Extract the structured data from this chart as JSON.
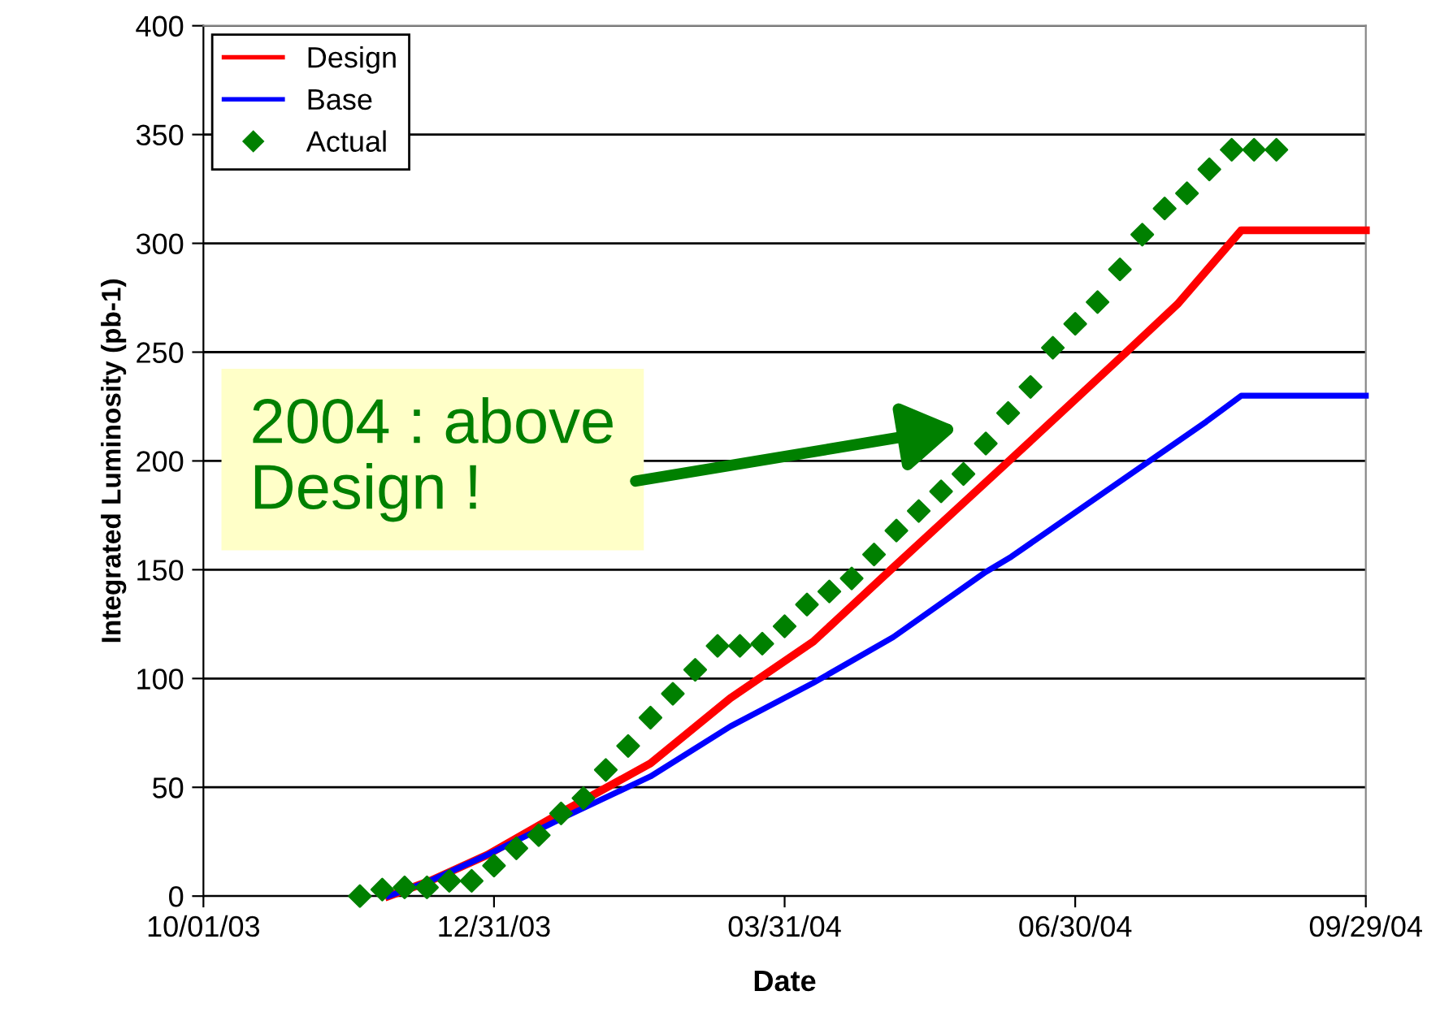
{
  "chart_data": {
    "type": "line",
    "xlabel": "Date",
    "ylabel": "Integrated Luminosity (pb-1)",
    "xlim": [
      "2003-10-01",
      "2004-09-29"
    ],
    "xticks": [
      {
        "value": "2003-10-01",
        "label": "10/01/03"
      },
      {
        "value": "2003-12-31",
        "label": "12/31/03"
      },
      {
        "value": "2004-03-31",
        "label": "03/31/04"
      },
      {
        "value": "2004-06-30",
        "label": "06/30/04"
      },
      {
        "value": "2004-09-29",
        "label": "09/29/04"
      }
    ],
    "ylim": [
      0,
      400
    ],
    "yticks": [
      0,
      50,
      100,
      150,
      200,
      250,
      300,
      350,
      400
    ],
    "grid": "y",
    "legend": "top left",
    "series": [
      {
        "name": "Design",
        "color": "#ff0000",
        "line_style": "solid",
        "x": [
          "2003-11-28",
          "2003-12-11",
          "2003-12-29",
          "2004-01-23",
          "2004-02-18",
          "2004-03-14",
          "2004-04-09",
          "2004-05-04",
          "2004-06-10",
          "2004-07-16",
          "2004-08-01",
          "2004-08-21",
          "2004-09-29"
        ],
        "values": [
          0,
          7,
          19,
          40,
          61,
          91,
          117,
          151,
          201,
          250,
          272,
          306,
          306
        ]
      },
      {
        "name": "Base",
        "color": "#0000ff",
        "line_style": "solid",
        "x": [
          "2003-11-28",
          "2003-12-11",
          "2003-12-29",
          "2004-01-23",
          "2004-02-18",
          "2004-03-14",
          "2004-04-09",
          "2004-05-04",
          "2004-06-02",
          "2004-06-10",
          "2004-08-10",
          "2004-08-21",
          "2004-09-29"
        ],
        "values": [
          0,
          7,
          19,
          37,
          55,
          78,
          98,
          119,
          149,
          156,
          218,
          230,
          230
        ]
      },
      {
        "name": "Actual",
        "type": "scatter",
        "color": "#008000",
        "marker": "diamond",
        "x": [
          "2003-11-19",
          "2003-11-26",
          "2003-12-03",
          "2003-12-10",
          "2003-12-17",
          "2003-12-24",
          "2003-12-31",
          "2004-01-07",
          "2004-01-14",
          "2004-01-21",
          "2004-01-28",
          "2004-02-04",
          "2004-02-11",
          "2004-02-18",
          "2004-02-25",
          "2004-03-03",
          "2004-03-10",
          "2004-03-17",
          "2004-03-24",
          "2004-03-31",
          "2004-04-07",
          "2004-04-14",
          "2004-04-21",
          "2004-04-28",
          "2004-05-05",
          "2004-05-12",
          "2004-05-19",
          "2004-05-26",
          "2004-06-02",
          "2004-06-09",
          "2004-06-16",
          "2004-06-23",
          "2004-06-30",
          "2004-07-07",
          "2004-07-14",
          "2004-07-21",
          "2004-07-28",
          "2004-08-04",
          "2004-08-11",
          "2004-08-18",
          "2004-08-25",
          "2004-09-01"
        ],
        "values": [
          0,
          3,
          4,
          4,
          7,
          7,
          14,
          22,
          28,
          38,
          45,
          58,
          69,
          82,
          93,
          104,
          115,
          115,
          116,
          124,
          134,
          140,
          146,
          157,
          168,
          177,
          186,
          194,
          208,
          222,
          234,
          252,
          263,
          273,
          288,
          304,
          316,
          323,
          334,
          343,
          343,
          343
        ]
      }
    ],
    "annotations": [
      "2004 : above\nDesign !"
    ]
  }
}
